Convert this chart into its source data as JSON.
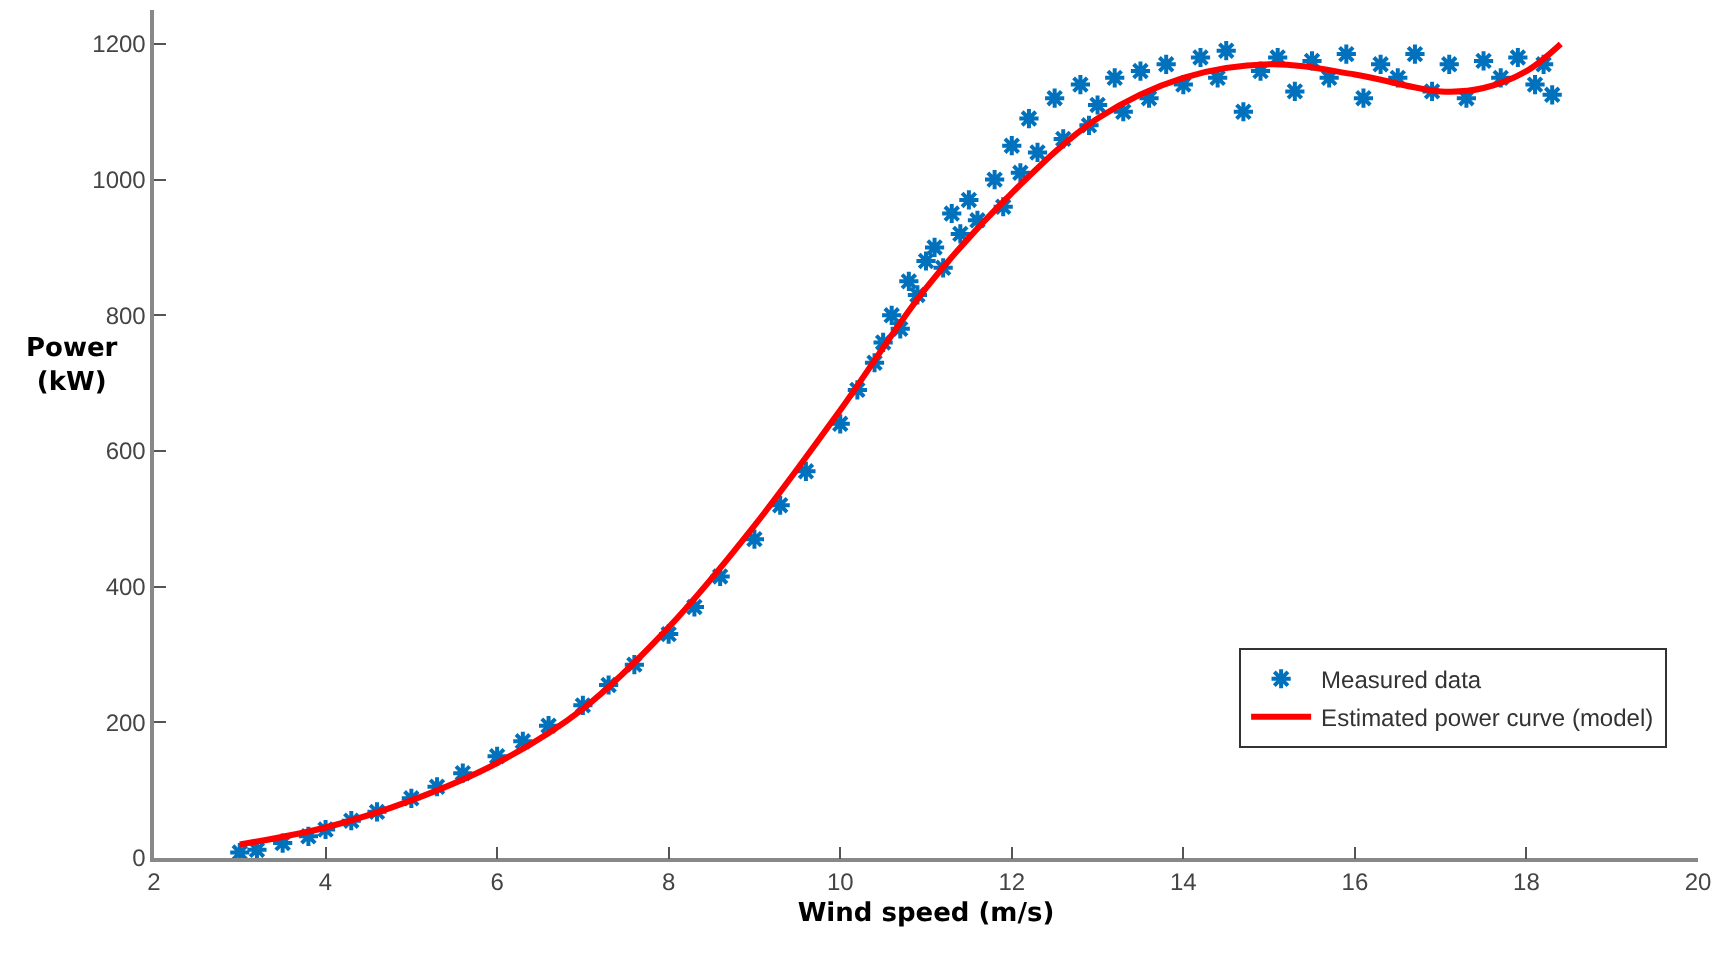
{
  "chart_data": {
    "type": "scatter",
    "xlabel": "Wind speed (m/s)",
    "ylabel": "Power\n(kW)",
    "xlim": [
      2,
      20
    ],
    "xticks": [
      2,
      4,
      6,
      8,
      10,
      12,
      14,
      16,
      18,
      20
    ],
    "ylim": [
      0,
      1250
    ],
    "yticks": [
      0,
      200,
      400,
      600,
      800,
      1000,
      1200
    ],
    "legend": "bottom right",
    "series": [
      {
        "name": "Measured data",
        "marker": "cross",
        "color": "#0072bd",
        "x": [
          3.0,
          3.2,
          3.5,
          3.8,
          4.0,
          4.3,
          4.6,
          5.0,
          5.3,
          5.6,
          6.0,
          6.3,
          6.6,
          7.0,
          7.3,
          7.6,
          8.0,
          8.3,
          8.6,
          9.0,
          9.3,
          9.6,
          10.0,
          10.2,
          10.4,
          10.5,
          10.6,
          10.7,
          10.8,
          10.9,
          11.0,
          11.1,
          11.2,
          11.3,
          11.4,
          11.5,
          11.6,
          11.8,
          11.9,
          12.0,
          12.1,
          12.2,
          12.3,
          12.5,
          12.6,
          12.8,
          12.9,
          13.0,
          13.2,
          13.3,
          13.5,
          13.6,
          13.8,
          14.0,
          14.2,
          14.4,
          14.5,
          14.7,
          14.9,
          15.1,
          15.3,
          15.5,
          15.7,
          15.9,
          16.1,
          16.3,
          16.5,
          16.7,
          16.9,
          17.1,
          17.3,
          17.5,
          17.7,
          17.9,
          18.1,
          18.2,
          18.3
        ],
        "values": [
          8,
          12,
          22,
          32,
          42,
          55,
          68,
          88,
          105,
          125,
          150,
          172,
          195,
          225,
          255,
          285,
          330,
          370,
          415,
          470,
          520,
          570,
          640,
          690,
          730,
          760,
          800,
          780,
          850,
          830,
          880,
          900,
          870,
          950,
          920,
          970,
          940,
          1000,
          960,
          1050,
          1010,
          1090,
          1040,
          1120,
          1060,
          1140,
          1080,
          1110,
          1150,
          1100,
          1160,
          1120,
          1170,
          1140,
          1180,
          1150,
          1190,
          1100,
          1160,
          1180,
          1130,
          1175,
          1150,
          1185,
          1120,
          1170,
          1150,
          1185,
          1130,
          1170,
          1120,
          1175,
          1150,
          1180,
          1140,
          1170,
          1125
        ]
      },
      {
        "name": "Estimated power curve (model)",
        "type": "line",
        "marker": "none",
        "line_style": "solid",
        "color": "#ff0000",
        "x": [
          3,
          4,
          5,
          6,
          7,
          8,
          9,
          10,
          11,
          12,
          13,
          14,
          15,
          16,
          17,
          17.5,
          18,
          18.4
        ],
        "values": [
          20,
          45,
          85,
          140,
          220,
          340,
          490,
          660,
          840,
          980,
          1090,
          1150,
          1170,
          1155,
          1130,
          1135,
          1160,
          1200
        ]
      }
    ]
  }
}
